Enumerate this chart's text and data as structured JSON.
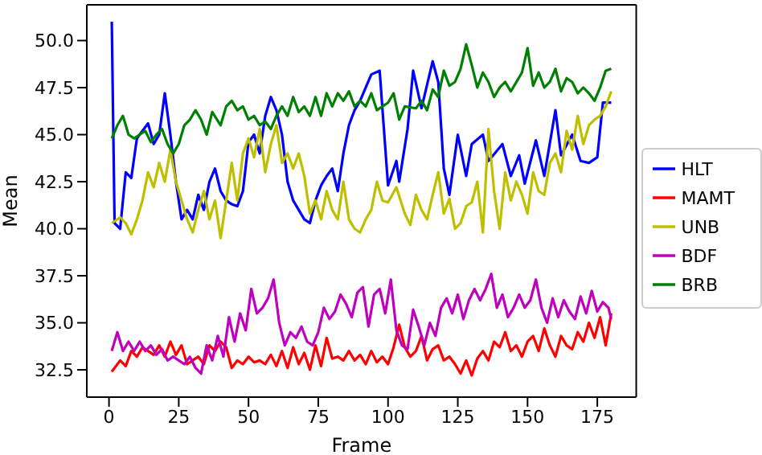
{
  "chart_data": {
    "type": "line",
    "xlabel": "Frame",
    "ylabel": "Mean",
    "xlim": [
      -7.95,
      188.95
    ],
    "ylim": [
      31.05,
      51.9
    ],
    "xticks": [
      0,
      25,
      50,
      75,
      100,
      125,
      150,
      175
    ],
    "yticks": [
      {
        "value": 32.5,
        "label": "32.5"
      },
      {
        "value": 35,
        "label": "35.0"
      },
      {
        "value": 37.5,
        "label": "37.5"
      },
      {
        "value": 40,
        "label": "40.0"
      },
      {
        "value": 42.5,
        "label": "42.5"
      },
      {
        "value": 45,
        "label": "45.0"
      },
      {
        "value": 47.5,
        "label": "47.5"
      },
      {
        "value": 50,
        "label": "50.0"
      }
    ],
    "grid": false,
    "legend": "right",
    "marker": "none",
    "line_style": "solid",
    "series": [
      {
        "name": "HLT",
        "color": "#0000ff",
        "x": [
          1,
          2,
          4,
          6,
          8,
          10,
          12,
          14,
          16,
          18,
          20,
          22,
          24,
          26,
          28,
          30,
          32,
          34,
          36,
          38,
          40,
          42,
          44,
          46,
          48,
          50,
          52,
          54,
          56,
          58,
          60,
          62,
          64,
          66,
          68,
          70,
          72,
          74,
          76,
          78,
          80,
          82,
          84,
          86,
          88,
          90,
          92,
          94,
          97,
          100,
          103,
          104,
          107,
          109,
          112,
          116,
          118,
          120,
          122,
          125,
          128,
          130,
          134,
          136,
          141,
          144,
          147,
          149,
          153,
          156,
          160,
          162,
          166,
          169,
          172,
          175,
          177,
          180
        ],
        "values": [
          51,
          40.3,
          40,
          43,
          42.7,
          44.8,
          45.2,
          45.6,
          44.5,
          45,
          47.2,
          45,
          42.5,
          40.5,
          41,
          40.5,
          41.8,
          41,
          42.5,
          43.2,
          42,
          41.5,
          41.3,
          41.2,
          42,
          44.6,
          45,
          44,
          46,
          47,
          46.3,
          45,
          42.5,
          41.5,
          41,
          40.5,
          40.3,
          41.5,
          42.3,
          42.8,
          43.2,
          42,
          44,
          45.5,
          46.3,
          46.8,
          47.5,
          48.2,
          48.4,
          42.3,
          43.6,
          42.5,
          45.3,
          48.4,
          46.4,
          48.9,
          47.8,
          43.2,
          41.8,
          45,
          42.8,
          44.5,
          45,
          43.6,
          44.5,
          42.8,
          43.9,
          42.4,
          44.7,
          42.8,
          46.3,
          43.9,
          45,
          43.6,
          43.5,
          43.8,
          46.7,
          46.7
        ]
      },
      {
        "name": "MAMT",
        "color": "#ff0000",
        "x": [
          1,
          4,
          6,
          8,
          10,
          12,
          14,
          16,
          18,
          20,
          22,
          24,
          26,
          28,
          30,
          32,
          34,
          36,
          38,
          40,
          42,
          44,
          46,
          48,
          50,
          52,
          54,
          56,
          58,
          60,
          62,
          64,
          66,
          68,
          70,
          72,
          74,
          76,
          78,
          80,
          82,
          84,
          86,
          88,
          90,
          92,
          94,
          96,
          98,
          100,
          102,
          104,
          106,
          108,
          110,
          112,
          114,
          116,
          118,
          120,
          122,
          124,
          126,
          128,
          130,
          132,
          134,
          136,
          138,
          140,
          142,
          144,
          146,
          148,
          150,
          152,
          154,
          156,
          158,
          160,
          162,
          164,
          166,
          168,
          170,
          172,
          174,
          176,
          178,
          180
        ],
        "values": [
          32.4,
          33,
          32.7,
          33.5,
          33.2,
          33.7,
          33.5,
          33.3,
          33.8,
          33.2,
          34,
          33.3,
          33.8,
          32.8,
          33,
          33.2,
          32.8,
          33.8,
          33.5,
          34,
          33.7,
          32.6,
          33,
          32.8,
          33.2,
          32.9,
          33,
          32.8,
          33.3,
          32.7,
          33.5,
          32.6,
          33.7,
          32.8,
          33.4,
          32.5,
          33.8,
          32.7,
          34.2,
          33.1,
          33.2,
          33,
          33.5,
          33,
          33.3,
          32.8,
          33.5,
          32.9,
          33.2,
          32.8,
          33.7,
          34.9,
          33.7,
          33.2,
          33.5,
          34.3,
          33,
          33.6,
          33.8,
          33,
          33.2,
          32.8,
          32.3,
          33,
          32.2,
          33.1,
          33.5,
          33,
          34,
          33.7,
          34.5,
          33.5,
          33.8,
          33.2,
          34,
          34.3,
          33.5,
          34.7,
          33.8,
          33.2,
          34.3,
          33.8,
          33.6,
          34.5,
          34,
          35,
          34.2,
          35.3,
          33.8,
          35.5
        ]
      },
      {
        "name": "UNB",
        "color": "#bfbf00",
        "x": [
          1,
          4,
          6,
          8,
          10,
          12,
          14,
          16,
          18,
          20,
          22,
          24,
          26,
          28,
          30,
          32,
          34,
          36,
          38,
          40,
          42,
          44,
          46,
          48,
          50,
          52,
          54,
          56,
          58,
          60,
          62,
          64,
          66,
          68,
          70,
          72,
          74,
          76,
          78,
          80,
          82,
          84,
          86,
          88,
          90,
          92,
          94,
          96,
          98,
          100,
          103,
          106,
          108,
          110,
          112,
          114,
          116,
          118,
          120,
          122,
          124,
          126,
          128,
          130,
          132,
          134,
          136,
          138,
          140,
          142,
          144,
          146,
          148,
          150,
          152,
          154,
          156,
          158,
          160,
          162,
          164,
          166,
          168,
          170,
          172,
          174,
          176,
          178,
          180
        ],
        "values": [
          40.3,
          40.6,
          40.3,
          39.7,
          40.5,
          41.5,
          43,
          42.2,
          43.5,
          42.5,
          44.2,
          42.5,
          41.5,
          40.5,
          39.8,
          41,
          42,
          40.5,
          41.5,
          39.5,
          41.5,
          43.5,
          41.5,
          44,
          44.8,
          43.8,
          45.3,
          43,
          44.5,
          45.5,
          43.5,
          44,
          43.2,
          44,
          42.8,
          40.8,
          41.5,
          40.5,
          42,
          41,
          40.5,
          42.5,
          40.5,
          40,
          39.8,
          40.5,
          41,
          42.5,
          41.5,
          41.4,
          42.2,
          40.8,
          40.2,
          41.8,
          41,
          40.5,
          41.8,
          43,
          40.8,
          41.6,
          40,
          40.3,
          41.2,
          41.4,
          42.5,
          39.8,
          45.3,
          42,
          40,
          43,
          41.5,
          42.5,
          41.8,
          40.8,
          43,
          42,
          41.8,
          43.5,
          44,
          43,
          45.2,
          44.2,
          46,
          44.5,
          45.5,
          45.8,
          46,
          46.5,
          47.3
        ]
      },
      {
        "name": "BDF",
        "color": "#bf00bf",
        "x": [
          1,
          3,
          5,
          7,
          9,
          11,
          13,
          15,
          17,
          19,
          21,
          23,
          25,
          27,
          29,
          31,
          33,
          35,
          37,
          39,
          41,
          43,
          45,
          47,
          49,
          51,
          53,
          55,
          57,
          59,
          61,
          63,
          65,
          67,
          69,
          71,
          73,
          75,
          77,
          79,
          81,
          83,
          85,
          87,
          89,
          91,
          93,
          95,
          97,
          99,
          101,
          103,
          105,
          107,
          109,
          111,
          113,
          115,
          117,
          119,
          121,
          123,
          125,
          127,
          129,
          131,
          133,
          135,
          137,
          139,
          141,
          143,
          145,
          147,
          149,
          151,
          153,
          155,
          157,
          159,
          161,
          163,
          165,
          167,
          169,
          171,
          173,
          175,
          177,
          179,
          180
        ],
        "values": [
          33.5,
          34.5,
          33.5,
          34,
          33.5,
          34,
          33.5,
          33.8,
          33.3,
          33.6,
          33,
          33.2,
          33,
          32.8,
          33.2,
          32.6,
          32.3,
          33.8,
          33,
          34.3,
          33.2,
          35.3,
          34,
          35.5,
          34.6,
          36.8,
          35.5,
          35.8,
          36.3,
          37.3,
          35,
          33.8,
          34.5,
          34.2,
          34.8,
          34,
          33.8,
          34.5,
          35.8,
          35.2,
          35.6,
          36.5,
          36,
          35.3,
          36.6,
          36.9,
          34.8,
          36.5,
          36.8,
          35.5,
          37.3,
          34.6,
          33.8,
          33.6,
          35.7,
          34.8,
          33.8,
          35,
          34.3,
          35.8,
          36.3,
          35.5,
          36.5,
          35.2,
          36.2,
          36.8,
          36.2,
          36.8,
          37.6,
          35.8,
          36.5,
          35.3,
          35.8,
          36.5,
          35.8,
          36.2,
          37.3,
          35.8,
          35,
          36.3,
          35.3,
          36.2,
          35.6,
          35.2,
          36.4,
          35.5,
          36.7,
          35.6,
          36.1,
          35.8,
          35.2
        ]
      },
      {
        "name": "BRB",
        "color": "#008000",
        "x": [
          1,
          3,
          5,
          7,
          9,
          11,
          13,
          15,
          17,
          19,
          21,
          23,
          25,
          27,
          29,
          31,
          33,
          35,
          37,
          40,
          42,
          44,
          46,
          48,
          50,
          52,
          54,
          56,
          58,
          60,
          62,
          64,
          66,
          68,
          70,
          72,
          74,
          76,
          78,
          80,
          82,
          84,
          86,
          88,
          90,
          92,
          94,
          96,
          98,
          100,
          102,
          104,
          106,
          110,
          112,
          114,
          116,
          118,
          120,
          122,
          124,
          126,
          128,
          130,
          132,
          134,
          136,
          138,
          140,
          142,
          144,
          146,
          148,
          150,
          152,
          154,
          156,
          158,
          160,
          162,
          164,
          166,
          168,
          170,
          172,
          174,
          176,
          178,
          180
        ],
        "values": [
          44.8,
          45.5,
          46,
          45,
          44.8,
          45,
          45.2,
          44.6,
          45,
          45.3,
          44.5,
          44,
          44.5,
          45.5,
          45.8,
          46.3,
          45.8,
          45,
          46.2,
          45.5,
          46.5,
          46.8,
          46.3,
          46.5,
          45.8,
          46,
          45.5,
          45.7,
          45.3,
          46,
          46.5,
          46,
          47,
          46.2,
          46.5,
          46,
          47,
          46,
          47.2,
          46.5,
          47.2,
          46.8,
          47.3,
          46.5,
          46.8,
          46.5,
          47.2,
          46.3,
          46.5,
          46.7,
          47.2,
          45.8,
          46.5,
          46.4,
          46.8,
          46.3,
          47.4,
          47,
          48.4,
          47.6,
          47.8,
          48.5,
          49.8,
          48.7,
          47.5,
          48.3,
          47.8,
          47,
          47.5,
          47.8,
          47.3,
          47.8,
          48.3,
          49.6,
          47.6,
          48.3,
          47.5,
          47.8,
          48.5,
          47.3,
          48,
          47.8,
          47.2,
          47.5,
          47.2,
          46.8,
          47.5,
          48.4,
          48.5
        ]
      }
    ]
  }
}
